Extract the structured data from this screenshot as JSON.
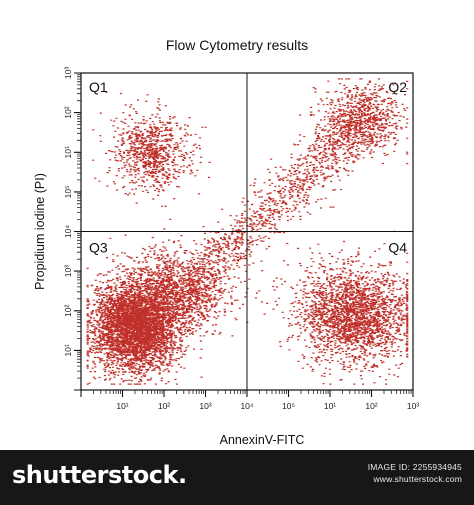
{
  "chart_data": {
    "type": "scatter",
    "title": "Flow Cytometry results",
    "xlabel": "AnnexinV-FITC",
    "ylabel": "Propidium iodine (PI)",
    "x_scale": "log",
    "y_scale": "log",
    "x_tick_labels": [
      "10¹",
      "10²",
      "10³",
      "10⁴",
      "10⁵"
    ],
    "y_tick_labels": [
      "10¹",
      "10²",
      "10³",
      "10⁴",
      "10⁵"
    ],
    "quadrant_labels": [
      "Q1",
      "Q2",
      "Q3",
      "Q4"
    ],
    "quadrant_gate": {
      "x_decade": 4,
      "y_decade": 4
    },
    "grid": false,
    "marker_color": "#c0302a",
    "populations": [
      {
        "quadrant": "Q1",
        "center_decade": [
          1.7,
          6.0
        ],
        "spread_decade": [
          0.55,
          0.55
        ],
        "points": 850
      },
      {
        "quadrant": "Q3",
        "center_decade": [
          1.3,
          1.6
        ],
        "spread_decade": [
          0.6,
          0.65
        ],
        "points": 4200
      },
      {
        "quadrant": "Q3",
        "center_decade": [
          2.3,
          2.5
        ],
        "spread_decade": [
          0.75,
          0.6
        ],
        "points": 1400
      },
      {
        "quadrant": "Q4",
        "center_decade": [
          6.6,
          1.9
        ],
        "spread_decade": [
          0.8,
          0.7
        ],
        "points": 2400
      },
      {
        "quadrant": "Q2",
        "center_decade": [
          6.7,
          6.8
        ],
        "spread_decade": [
          0.6,
          0.5
        ],
        "points": 650
      },
      {
        "quadrant": "Q3-Q2 diagonal",
        "from_decade": [
          2.8,
          2.8
        ],
        "to_decade": [
          7.2,
          7.2
        ],
        "points": 1200
      }
    ]
  },
  "footer": {
    "brand": "shutterstock.",
    "image_id": "IMAGE ID: 2255934945",
    "site": "www.shutterstock.com"
  }
}
